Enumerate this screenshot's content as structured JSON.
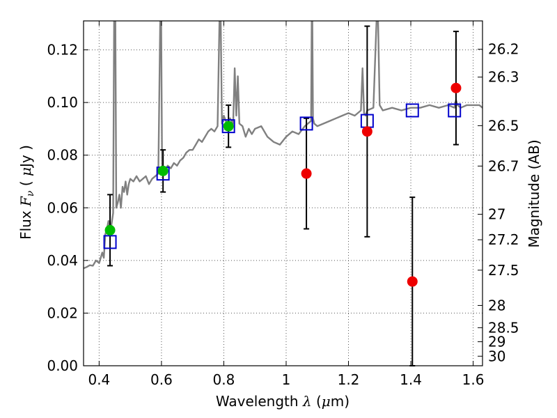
{
  "chart_data": {
    "type": "scatter",
    "xlabel": {
      "text": "Wavelength",
      "symbol": "λ",
      "unit_open": "(",
      "unit_mu": "μ",
      "unit_rest": "m)"
    },
    "ylabel": {
      "text": "Flux",
      "symbol": "F",
      "sub": "ν",
      "unit_open": "(",
      "unit_mu": "μ",
      "unit_rest": "Jy )"
    },
    "y2label": "Magnitude (AB)",
    "xlim": [
      0.35,
      1.63
    ],
    "ylim": [
      0.0,
      0.131
    ],
    "x_ticks": [
      {
        "value": 0.4,
        "label": "0.4"
      },
      {
        "value": 0.6,
        "label": "0.6"
      },
      {
        "value": 0.8,
        "label": "0.8"
      },
      {
        "value": 1.0,
        "label": "1"
      },
      {
        "value": 1.2,
        "label": "1.2"
      },
      {
        "value": 1.4,
        "label": "1.4"
      },
      {
        "value": 1.6,
        "label": "1.6"
      }
    ],
    "y_ticks": [
      {
        "value": 0.0,
        "label": "0.00"
      },
      {
        "value": 0.02,
        "label": "0.02"
      },
      {
        "value": 0.04,
        "label": "0.04"
      },
      {
        "value": 0.06,
        "label": "0.06"
      },
      {
        "value": 0.08,
        "label": "0.08"
      },
      {
        "value": 0.1,
        "label": "0.10"
      },
      {
        "value": 0.12,
        "label": "0.12"
      }
    ],
    "mag_ticks": [
      {
        "value": 26.2,
        "label": "26.2"
      },
      {
        "value": 26.3,
        "label": "26.3"
      },
      {
        "value": 26.5,
        "label": "26.5"
      },
      {
        "value": 26.7,
        "label": "26.7"
      },
      {
        "value": 27.0,
        "label": "27"
      },
      {
        "value": 27.2,
        "label": "27.2"
      },
      {
        "value": 27.5,
        "label": "27.5"
      },
      {
        "value": 28.0,
        "label": "28"
      },
      {
        "value": 28.5,
        "label": "28.5"
      },
      {
        "value": 29.0,
        "label": "29"
      },
      {
        "value": 30.0,
        "label": "30"
      }
    ],
    "grid": true,
    "colors": {
      "sed": "#808080",
      "model": "#0000cc",
      "detection": "#00bb00",
      "measured": "#ee0000",
      "errorbar": "#000000",
      "grid": "#555555"
    },
    "sed_model": {
      "x": [
        0.35,
        0.36,
        0.37,
        0.38,
        0.39,
        0.4,
        0.41,
        0.415,
        0.42,
        0.425,
        0.43,
        0.435,
        0.44,
        0.445,
        0.448,
        0.452,
        0.455,
        0.46,
        0.465,
        0.47,
        0.475,
        0.48,
        0.485,
        0.49,
        0.495,
        0.5,
        0.51,
        0.52,
        0.53,
        0.54,
        0.55,
        0.56,
        0.57,
        0.58,
        0.59,
        0.596,
        0.599,
        0.602,
        0.605,
        0.61,
        0.62,
        0.63,
        0.64,
        0.65,
        0.66,
        0.67,
        0.68,
        0.69,
        0.7,
        0.71,
        0.72,
        0.73,
        0.74,
        0.75,
        0.76,
        0.77,
        0.78,
        0.786,
        0.79,
        0.794,
        0.8,
        0.81,
        0.82,
        0.83,
        0.835,
        0.84,
        0.845,
        0.85,
        0.86,
        0.87,
        0.88,
        0.89,
        0.9,
        0.92,
        0.94,
        0.96,
        0.98,
        1.0,
        1.02,
        1.04,
        1.06,
        1.08,
        1.082,
        1.084,
        1.086,
        1.09,
        1.1,
        1.12,
        1.14,
        1.16,
        1.18,
        1.2,
        1.22,
        1.24,
        1.245,
        1.25,
        1.255,
        1.26,
        1.28,
        1.29,
        1.295,
        1.3,
        1.31,
        1.34,
        1.37,
        1.4,
        1.43,
        1.46,
        1.49,
        1.52,
        1.54,
        1.545,
        1.55,
        1.56,
        1.58,
        1.6,
        1.62,
        1.63
      ],
      "y": [
        0.037,
        0.0375,
        0.0382,
        0.038,
        0.04,
        0.039,
        0.043,
        0.041,
        0.05,
        0.052,
        0.055,
        0.05,
        0.054,
        0.058,
        0.131,
        0.131,
        0.06,
        0.062,
        0.065,
        0.06,
        0.068,
        0.066,
        0.07,
        0.065,
        0.069,
        0.071,
        0.07,
        0.072,
        0.07,
        0.071,
        0.072,
        0.069,
        0.071,
        0.072,
        0.073,
        0.131,
        0.131,
        0.075,
        0.073,
        0.074,
        0.076,
        0.075,
        0.077,
        0.076,
        0.078,
        0.079,
        0.081,
        0.082,
        0.082,
        0.084,
        0.086,
        0.085,
        0.087,
        0.089,
        0.09,
        0.089,
        0.091,
        0.131,
        0.131,
        0.092,
        0.095,
        0.092,
        0.094,
        0.092,
        0.113,
        0.095,
        0.11,
        0.092,
        0.091,
        0.087,
        0.09,
        0.088,
        0.09,
        0.091,
        0.087,
        0.085,
        0.084,
        0.087,
        0.089,
        0.088,
        0.091,
        0.093,
        0.131,
        0.131,
        0.094,
        0.092,
        0.091,
        0.092,
        0.093,
        0.094,
        0.095,
        0.096,
        0.095,
        0.097,
        0.113,
        0.096,
        0.095,
        0.097,
        0.098,
        0.131,
        0.131,
        0.099,
        0.097,
        0.098,
        0.097,
        0.098,
        0.098,
        0.099,
        0.098,
        0.099,
        0.098,
        0.101,
        0.099,
        0.098,
        0.099,
        0.099,
        0.099,
        0.098
      ]
    },
    "model_boxes": {
      "x": [
        0.435,
        0.605,
        0.815,
        1.065,
        1.26,
        1.405,
        1.54
      ],
      "y": [
        0.047,
        0.073,
        0.091,
        0.092,
        0.093,
        0.097,
        0.097
      ]
    },
    "detections": {
      "x": [
        0.435,
        0.605,
        0.815
      ],
      "y": [
        0.0515,
        0.074,
        0.091
      ],
      "err": [
        0.0135,
        0.008,
        0.008
      ]
    },
    "measured": {
      "x": [
        1.065,
        1.26,
        1.405,
        1.545
      ],
      "y": [
        0.073,
        0.089,
        0.032,
        0.1055
      ],
      "err": [
        0.021,
        0.04,
        0.032,
        0.0215
      ]
    }
  }
}
